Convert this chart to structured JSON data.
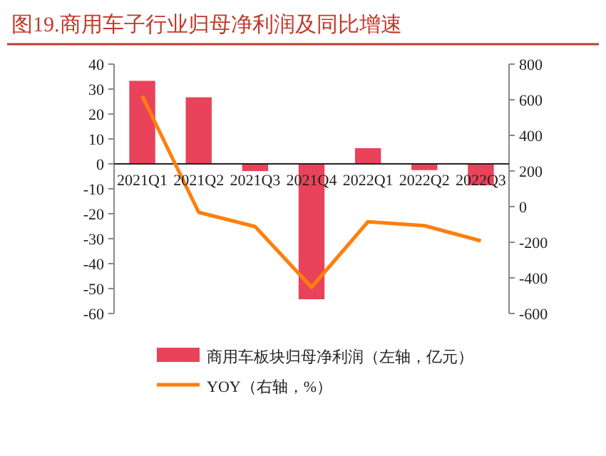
{
  "chart_data": {
    "type": "bar",
    "title": "图19.商用车子行业归母净利润及同比增速",
    "categories": [
      "2021Q1",
      "2021Q2",
      "2021Q3",
      "2021Q4",
      "2022Q1",
      "2022Q2",
      "2022Q3"
    ],
    "series": [
      {
        "name": "商用车板块归母净利润（左轴，亿元）",
        "color": "#e8435a",
        "values": [
          33.3,
          26.7,
          -2.9,
          -54.3,
          6.3,
          -2.5,
          -8.6
        ]
      },
      {
        "name": "YOY（右轴，%）",
        "type": "line",
        "axis": "y2",
        "color": "#ff7f0e",
        "values": [
          621,
          -32,
          -112,
          -453,
          -85,
          -107,
          -192
        ]
      }
    ],
    "ylim": [
      -60,
      40
    ],
    "yticks": [
      -60,
      -50,
      -40,
      -30,
      -20,
      -10,
      0,
      10,
      20,
      30,
      40
    ],
    "y2lim": [
      -600,
      800
    ],
    "y2ticks": [
      -600,
      -400,
      -200,
      0,
      200,
      400,
      600,
      800
    ],
    "legend": "bottom"
  }
}
